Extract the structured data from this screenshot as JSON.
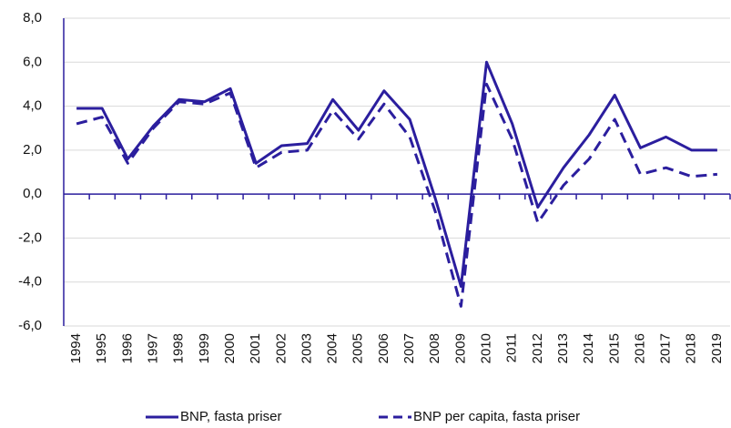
{
  "chart_data": {
    "type": "line",
    "categories": [
      "1994",
      "1995",
      "1996",
      "1997",
      "1998",
      "1999",
      "2000",
      "2001",
      "2002",
      "2003",
      "2004",
      "2005",
      "2006",
      "2007",
      "2008",
      "2009",
      "2010",
      "2011",
      "2012",
      "2013",
      "2014",
      "2015",
      "2016",
      "2017",
      "2018",
      "2019"
    ],
    "series": [
      {
        "name": "BNP, fasta priser",
        "color": "#2b1e9e",
        "line_style": "solid",
        "values": [
          3.9,
          3.9,
          1.6,
          3.1,
          4.3,
          4.2,
          4.8,
          1.4,
          2.2,
          2.3,
          4.3,
          2.9,
          4.7,
          3.4,
          -0.2,
          -4.2,
          6.0,
          3.2,
          -0.6,
          1.2,
          2.7,
          4.5,
          2.1,
          2.6,
          2.0,
          2.0
        ]
      },
      {
        "name": "BNP per capita, fasta priser",
        "color": "#2b1e9e",
        "line_style": "dashed",
        "values": [
          3.2,
          3.5,
          1.4,
          3.0,
          4.2,
          4.1,
          4.6,
          1.2,
          1.9,
          2.0,
          3.8,
          2.5,
          4.1,
          2.6,
          -0.8,
          -5.1,
          5.0,
          2.5,
          -1.3,
          0.4,
          1.6,
          3.4,
          0.9,
          1.2,
          0.8,
          0.9
        ]
      }
    ],
    "ylim": [
      -6,
      8
    ],
    "yticks": [
      {
        "value": -6,
        "label": "-6,0"
      },
      {
        "value": -4,
        "label": "-4,0"
      },
      {
        "value": -2,
        "label": "-2,0"
      },
      {
        "value": 0,
        "label": "0,0"
      },
      {
        "value": 2,
        "label": "2,0"
      },
      {
        "value": 4,
        "label": "4,0"
      },
      {
        "value": 6,
        "label": "6,0"
      },
      {
        "value": 8,
        "label": "8,0"
      }
    ],
    "grid": true,
    "legend": "bottom"
  }
}
